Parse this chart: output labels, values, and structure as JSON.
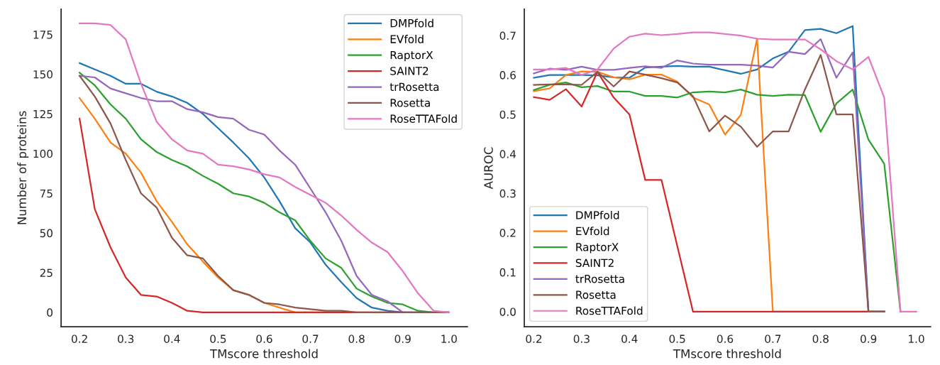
{
  "chart_data": [
    {
      "type": "line",
      "xlabel": "TMscore threshold",
      "ylabel": "Number of proteins",
      "x": [
        0.2,
        0.233,
        0.267,
        0.3,
        0.333,
        0.367,
        0.4,
        0.433,
        0.467,
        0.5,
        0.533,
        0.567,
        0.6,
        0.633,
        0.667,
        0.7,
        0.733,
        0.767,
        0.8,
        0.833,
        0.867,
        0.9,
        0.933,
        0.967,
        1.0
      ],
      "xlim": [
        0.16,
        1.04
      ],
      "xticks": [
        0.2,
        0.3,
        0.4,
        0.5,
        0.6,
        0.7,
        0.8,
        0.9,
        {
          "value": 1,
          "label": "1.0"
        }
      ],
      "ylim": [
        -9,
        191
      ],
      "yticks": [
        0,
        25,
        50,
        75,
        100,
        125,
        150,
        175
      ],
      "grid": false,
      "legend": "top right",
      "line_style": "solid",
      "series": [
        {
          "name": "DMPfold",
          "color": "#1f77b4",
          "values": [
            157,
            153,
            149,
            144,
            144,
            139,
            136,
            132,
            125,
            116,
            107,
            97,
            85,
            70,
            53,
            44,
            30,
            19,
            9,
            3,
            1,
            0,
            0,
            null,
            null
          ]
        },
        {
          "name": "EVfold",
          "color": "#ff7f0e",
          "values": [
            135,
            122,
            107,
            100,
            88,
            70,
            57,
            43,
            32,
            22,
            14,
            11,
            6,
            3,
            0,
            0,
            0,
            0,
            null,
            null,
            null,
            null,
            null,
            null,
            null
          ]
        },
        {
          "name": "RaptorX",
          "color": "#2ca02c",
          "values": [
            151,
            143,
            131,
            122,
            109,
            101,
            96,
            92,
            86,
            81,
            75,
            73,
            69,
            63,
            58,
            45,
            34,
            28,
            15,
            10,
            6,
            5,
            1,
            0,
            0
          ]
        },
        {
          "name": "SAINT2",
          "color": "#d62728",
          "values": [
            122,
            65,
            41,
            22,
            11,
            10,
            6,
            1,
            0,
            0,
            0,
            0,
            0,
            0,
            0,
            0,
            0,
            0,
            0,
            0,
            0,
            0,
            null,
            null,
            null
          ]
        },
        {
          "name": "trRosetta",
          "color": "#9467bd",
          "values": [
            149,
            148,
            141,
            138,
            135,
            133,
            133,
            128,
            126,
            123,
            122,
            115,
            112,
            102,
            93,
            78,
            63,
            45,
            23,
            11,
            7,
            0,
            0,
            0,
            0
          ]
        },
        {
          "name": "Rosetta",
          "color": "#8c564b",
          "values": [
            149,
            136,
            119,
            96,
            75,
            66,
            47,
            36,
            34,
            23,
            14,
            11,
            6,
            5,
            3,
            2,
            1,
            1,
            0,
            0,
            0,
            0,
            0,
            0,
            0
          ]
        },
        {
          "name": "RoseTTAFold",
          "color": "#e377c2",
          "values": [
            182,
            182,
            181,
            172,
            144,
            120,
            109,
            102,
            100,
            93,
            92,
            90,
            87,
            85,
            79,
            74,
            69,
            61,
            52,
            44,
            38,
            26,
            12,
            1,
            0
          ]
        }
      ]
    },
    {
      "type": "line",
      "xlabel": "TMscore threshold",
      "ylabel": "AUROC",
      "x": [
        0.2,
        0.233,
        0.267,
        0.3,
        0.333,
        0.367,
        0.4,
        0.433,
        0.467,
        0.5,
        0.533,
        0.567,
        0.6,
        0.633,
        0.667,
        0.7,
        0.733,
        0.767,
        0.8,
        0.833,
        0.867,
        0.9,
        0.933,
        0.967,
        1.0
      ],
      "xlim": [
        0.18,
        1.03
      ],
      "xticks": [
        0.2,
        0.3,
        0.4,
        0.5,
        0.6,
        0.7,
        0.8,
        0.9,
        {
          "value": 1,
          "label": "1.0"
        }
      ],
      "ylim": [
        -0.038,
        0.767
      ],
      "yticks": [
        {
          "value": 0,
          "label": "0.0"
        },
        0.1,
        0.2,
        0.3,
        0.4,
        0.5,
        0.6,
        0.7
      ],
      "grid": false,
      "legend": "lower left",
      "line_style": "solid",
      "series": [
        {
          "name": "DMPfold",
          "color": "#1f77b4",
          "values": [
            0.593,
            0.6,
            0.6,
            0.6,
            0.599,
            0.594,
            0.593,
            0.619,
            0.621,
            0.623,
            0.621,
            0.621,
            0.612,
            0.603,
            0.614,
            0.642,
            0.659,
            0.714,
            0.717,
            0.706,
            0.724,
            0,
            0,
            null,
            null
          ]
        },
        {
          "name": "EVfold",
          "color": "#ff7f0e",
          "values": [
            0.559,
            0.566,
            0.6,
            0.609,
            0.608,
            0.594,
            0.589,
            0.601,
            0.601,
            0.583,
            0.543,
            0.525,
            0.449,
            0.499,
            0.692,
            0,
            0,
            0,
            0,
            0,
            0,
            0,
            0,
            null,
            null
          ]
        },
        {
          "name": "RaptorX",
          "color": "#2ca02c",
          "values": [
            0.562,
            0.575,
            0.581,
            0.569,
            0.572,
            0.558,
            0.558,
            0.547,
            0.547,
            0.543,
            0.556,
            0.558,
            0.556,
            0.563,
            0.55,
            0.547,
            0.55,
            0.549,
            0.456,
            0.528,
            0.563,
            0.436,
            0.375,
            0,
            null
          ]
        },
        {
          "name": "SAINT2",
          "color": "#d62728",
          "values": [
            0.544,
            0.537,
            0.564,
            0.52,
            0.608,
            0.543,
            0.5,
            0.334,
            0.334,
            0.167,
            0,
            0,
            0,
            0,
            0,
            0,
            0,
            0,
            0,
            0,
            0,
            0,
            0,
            null,
            null
          ]
        },
        {
          "name": "trRosetta",
          "color": "#9467bd",
          "values": [
            0.604,
            0.616,
            0.613,
            0.621,
            0.613,
            0.613,
            0.618,
            0.622,
            0.618,
            0.637,
            0.629,
            0.626,
            0.626,
            0.626,
            0.624,
            0.619,
            0.659,
            0.653,
            0.691,
            0.593,
            0.657,
            0,
            0,
            null,
            null
          ]
        },
        {
          "name": "Rosetta",
          "color": "#8c564b",
          "values": [
            0.575,
            0.576,
            0.576,
            0.575,
            0.608,
            0.571,
            0.609,
            0.601,
            0.592,
            0.581,
            0.546,
            0.457,
            0.497,
            0.469,
            0.418,
            0.457,
            0.457,
            0.563,
            0.651,
            0.5,
            0.5,
            0,
            0,
            null,
            null
          ]
        },
        {
          "name": "RoseTTAFold",
          "color": "#e377c2",
          "values": [
            0.614,
            0.614,
            0.618,
            0.6,
            0.614,
            0.667,
            0.697,
            0.705,
            0.701,
            0.704,
            0.708,
            0.708,
            0.704,
            0.7,
            0.692,
            0.69,
            0.69,
            0.69,
            0.665,
            0.635,
            0.614,
            0.646,
            0.543,
            0,
            0
          ]
        }
      ]
    }
  ]
}
